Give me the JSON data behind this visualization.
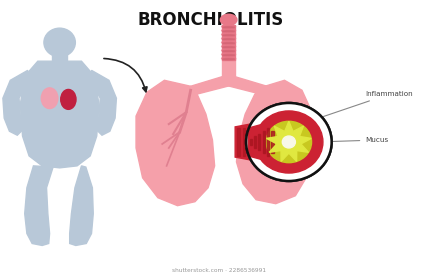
{
  "title": "BRONCHIOLITIS",
  "title_fontsize": 12,
  "title_fontweight": "bold",
  "bg_color": "#ffffff",
  "body_color": "#b8c8d8",
  "lung_color": "#f5a0aa",
  "lung_dark": "#e07080",
  "trachea_color": "#e87888",
  "airway_red_outer": "#cc2233",
  "airway_red_dark": "#aa1520",
  "airway_yellow": "#c8c820",
  "airway_center": "#e0e840",
  "airway_white": "#f8f8e8",
  "circle_edge": "#111111",
  "label_inflammation": "Inflammation",
  "label_mucus": "Mucus",
  "watermark": "shutterstock.com · 2286536991",
  "arrow_color": "#222222",
  "baby_lung_left": "#f0a0b0",
  "baby_lung_right": "#c02040",
  "vein_color": "#e08090"
}
